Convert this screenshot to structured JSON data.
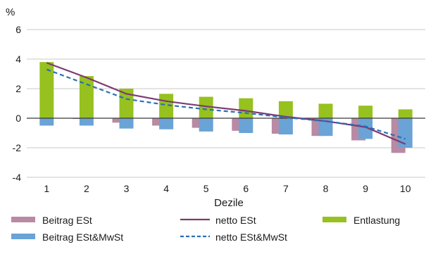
{
  "chart_data": {
    "type": "bar",
    "unit_label": "%",
    "xlabel": "Dezile",
    "ylabel": "",
    "ylim": [
      -4,
      6
    ],
    "yticks": [
      -4,
      -2,
      0,
      2,
      4,
      6
    ],
    "grid": "horizontal",
    "legend_position": "bottom",
    "categories": [
      "1",
      "2",
      "3",
      "4",
      "5",
      "6",
      "7",
      "8",
      "9",
      "10"
    ],
    "series": [
      {
        "name": "Beitrag ESt",
        "kind": "bar",
        "color": "#b88aa3",
        "values": [
          0.0,
          -0.05,
          -0.3,
          -0.5,
          -0.65,
          -0.85,
          -1.05,
          -1.2,
          -1.5,
          -2.35
        ]
      },
      {
        "name": "Beitrag ESt&MwSt",
        "kind": "bar",
        "color": "#6aa3d6",
        "values": [
          -0.5,
          -0.5,
          -0.7,
          -0.75,
          -0.9,
          -1.0,
          -1.1,
          -1.2,
          -1.4,
          -2.0
        ]
      },
      {
        "name": "Entlastung",
        "kind": "bar",
        "color": "#96c11f",
        "values": [
          3.8,
          2.85,
          2.0,
          1.65,
          1.45,
          1.35,
          1.15,
          0.98,
          0.85,
          0.6
        ]
      },
      {
        "name": "netto ESt",
        "kind": "line",
        "color": "#7d3a72",
        "dash": false,
        "values": [
          3.75,
          2.75,
          1.65,
          1.15,
          0.8,
          0.5,
          0.1,
          -0.2,
          -0.6,
          -1.75
        ]
      },
      {
        "name": "netto ESt&MwSt",
        "kind": "line",
        "color": "#2a6fb5",
        "dash": true,
        "values": [
          3.3,
          2.3,
          1.3,
          0.9,
          0.6,
          0.35,
          0.05,
          -0.2,
          -0.55,
          -1.4
        ]
      }
    ]
  }
}
